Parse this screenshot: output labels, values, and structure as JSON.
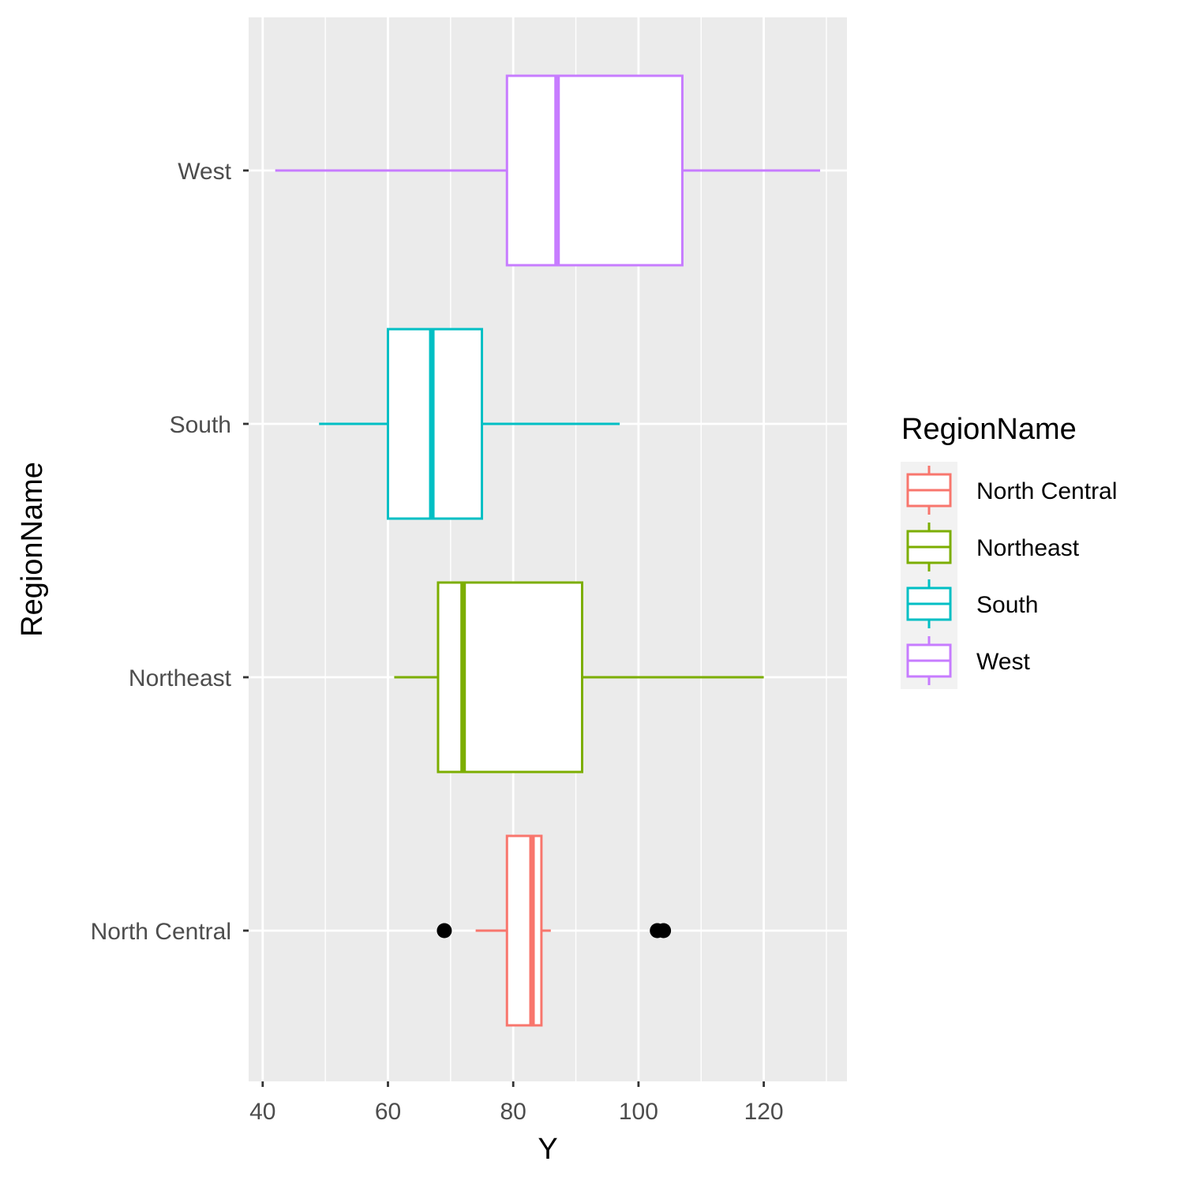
{
  "chart_data": {
    "type": "boxplot",
    "orientation": "horizontal",
    "xlabel": "Y",
    "ylabel": "RegionName",
    "xlim": [
      37.5,
      133.5
    ],
    "x_ticks": [
      40,
      60,
      80,
      100,
      120
    ],
    "x_tick_labels": [
      "40",
      "60",
      "80",
      "100",
      "120"
    ],
    "categories": [
      "North Central",
      "Northeast",
      "South",
      "West"
    ],
    "grid": true,
    "legend": {
      "title": "RegionName",
      "position": "right",
      "entries": [
        "North Central",
        "Northeast",
        "South",
        "West"
      ]
    },
    "series": [
      {
        "name": "North Central",
        "color": "#F8766D",
        "whisker_low": 74,
        "q1": 79,
        "median": 83,
        "q3": 84.5,
        "whisker_high": 86,
        "outliers": [
          69,
          103,
          104
        ]
      },
      {
        "name": "Northeast",
        "color": "#7CAE00",
        "whisker_low": 61,
        "q1": 68,
        "median": 72,
        "q3": 91,
        "whisker_high": 120,
        "outliers": []
      },
      {
        "name": "South",
        "color": "#00BFC4",
        "whisker_low": 49,
        "q1": 60,
        "median": 67,
        "q3": 75,
        "whisker_high": 97,
        "outliers": []
      },
      {
        "name": "West",
        "color": "#C77CFF",
        "whisker_low": 42,
        "q1": 79,
        "median": 87,
        "q3": 107,
        "whisker_high": 129,
        "outliers": []
      }
    ]
  }
}
